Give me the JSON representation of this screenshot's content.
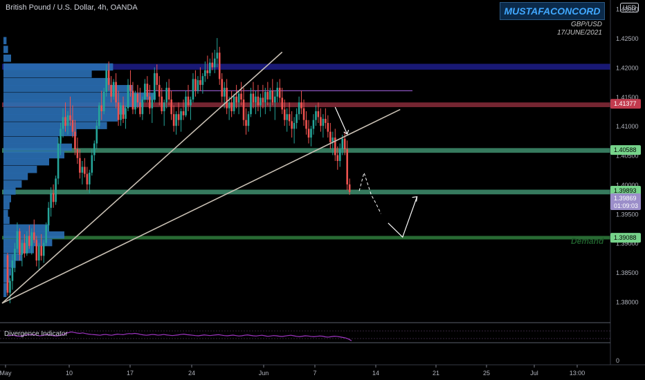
{
  "header": {
    "title": "British Pound / U.S. Dollar, 4h, OANDA",
    "brand": "MUSTAFACONCORD",
    "pair": "GBP/USD",
    "date": "17/JUNE/2021",
    "currency_button": "USD"
  },
  "annotations": {
    "demand": "Demand"
  },
  "indicator": {
    "name": "Divergence Indicator",
    "scale_zero": "0"
  },
  "colors": {
    "background": "#000000",
    "candle_up": "#26a69a",
    "candle_down": "#ef5350",
    "volume_profile": "#2a6fb5",
    "divergence_line": "#a035c4"
  },
  "chart_data": {
    "type": "candlestick",
    "symbol": "GBPUSD",
    "timeframe": "4h",
    "ylim": [
      1.3765,
      1.4315
    ],
    "y_ticks": [
      "1.43000",
      "1.42500",
      "1.42000",
      "1.41500",
      "1.41000",
      "1.40500",
      "1.40000",
      "1.39500",
      "1.39000",
      "1.38500",
      "1.38000"
    ],
    "x_ticks": [
      "May",
      "10",
      "17",
      "24",
      "Jun",
      "7",
      "14",
      "21",
      "25",
      "Jul",
      "13:00"
    ],
    "price_levels": [
      {
        "label": "1.41377",
        "value": 1.41377,
        "color": "#c23b4e",
        "text_color": "#ffffff"
      },
      {
        "label": "1.40588",
        "value": 1.40588,
        "color": "#76d38a",
        "text_color": "#000000"
      },
      {
        "label": "1.39893",
        "value": 1.39893,
        "color": "#76d38a",
        "text_color": "#000000"
      },
      {
        "label": "1.39869",
        "value": 1.39869,
        "color": "#9b8ec9",
        "text_color": "#ffffff",
        "countdown": "01:09:03"
      },
      {
        "label": "1.39088",
        "value": 1.39088,
        "color": "#76d38a",
        "text_color": "#000000"
      }
    ],
    "zones": [
      {
        "name": "supply-zone",
        "from": 1.4196,
        "to": 1.4206,
        "color": "#1d1d8a"
      },
      {
        "name": "resistance-zone",
        "from": 1.4132,
        "to": 1.414,
        "color": "#8a2b3a"
      },
      {
        "name": "support-zone-1",
        "from": 1.4054,
        "to": 1.4062,
        "color": "#3f8f6e"
      },
      {
        "name": "support-zone-2",
        "from": 1.3983,
        "to": 1.3991,
        "color": "#3f8f6e"
      },
      {
        "name": "demand-zone",
        "from": 1.3906,
        "to": 1.3912,
        "color": "#2f7d3c"
      }
    ],
    "horizontal_lines": [
      {
        "value": 1.416,
        "color": "#9b5fd6"
      }
    ],
    "trendlines": [
      {
        "from_bar": 0,
        "from_price": 1.3797,
        "to_bar": 114,
        "to_price": 1.4226
      },
      {
        "from_bar": 0,
        "from_price": 1.3797,
        "to_bar": 163,
        "to_price": 1.4128
      }
    ],
    "projection": {
      "dashed": [
        [
          146,
          1.3989
        ],
        [
          148,
          1.402
        ],
        [
          151,
          1.3982
        ],
        [
          153,
          1.3967
        ],
        [
          155,
          1.395
        ]
      ],
      "solid": [
        [
          158,
          1.3934
        ],
        [
          164,
          1.391
        ],
        [
          170,
          1.3979
        ]
      ]
    },
    "swing_arrow": [
      [
        136,
        1.4132
      ],
      [
        141,
        1.4086
      ]
    ],
    "candles_ohlc": [
      [
        1.3879,
        1.3883,
        1.381,
        1.3815
      ],
      [
        1.3815,
        1.384,
        1.3797,
        1.3835
      ],
      [
        1.3835,
        1.388,
        1.382,
        1.387
      ],
      [
        1.387,
        1.39,
        1.385,
        1.389
      ],
      [
        1.389,
        1.3935,
        1.388,
        1.392
      ],
      [
        1.392,
        1.3925,
        1.387,
        1.388
      ],
      [
        1.388,
        1.3905,
        1.386,
        1.39
      ],
      [
        1.39,
        1.3915,
        1.3875,
        1.3882
      ],
      [
        1.3882,
        1.392,
        1.3878,
        1.3912
      ],
      [
        1.3912,
        1.393,
        1.389,
        1.3895
      ],
      [
        1.3895,
        1.3925,
        1.388,
        1.3918
      ],
      [
        1.3918,
        1.394,
        1.39,
        1.3905
      ],
      [
        1.3905,
        1.3912,
        1.386,
        1.387
      ],
      [
        1.387,
        1.39,
        1.3855,
        1.3895
      ],
      [
        1.3895,
        1.3915,
        1.387,
        1.3878
      ],
      [
        1.3878,
        1.3905,
        1.3866,
        1.39
      ],
      [
        1.39,
        1.3935,
        1.3895,
        1.393
      ],
      [
        1.393,
        1.397,
        1.392,
        1.396
      ],
      [
        1.396,
        1.3995,
        1.3945,
        1.3985
      ],
      [
        1.3985,
        1.4,
        1.396,
        1.397
      ],
      [
        1.397,
        1.4015,
        1.3965,
        1.401
      ],
      [
        1.401,
        1.408,
        1.4,
        1.407
      ],
      [
        1.407,
        1.4105,
        1.405,
        1.4095
      ],
      [
        1.4095,
        1.413,
        1.408,
        1.4115
      ],
      [
        1.4115,
        1.414,
        1.409,
        1.41
      ],
      [
        1.41,
        1.4125,
        1.4085,
        1.4118
      ],
      [
        1.4118,
        1.415,
        1.41,
        1.411
      ],
      [
        1.411,
        1.4135,
        1.408,
        1.409
      ],
      [
        1.409,
        1.411,
        1.405,
        1.406
      ],
      [
        1.406,
        1.408,
        1.4035,
        1.4045
      ],
      [
        1.4045,
        1.406,
        1.401,
        1.402
      ],
      [
        1.402,
        1.404,
        1.4,
        1.403
      ],
      [
        1.403,
        1.4045,
        1.4012,
        1.4018
      ],
      [
        1.4018,
        1.403,
        1.399,
        1.4
      ],
      [
        1.4,
        1.4025,
        1.3985,
        1.402
      ],
      [
        1.402,
        1.406,
        1.4015,
        1.405
      ],
      [
        1.405,
        1.4075,
        1.404,
        1.407
      ],
      [
        1.407,
        1.411,
        1.406,
        1.41
      ],
      [
        1.41,
        1.414,
        1.4095,
        1.4135
      ],
      [
        1.4135,
        1.416,
        1.411,
        1.4125
      ],
      [
        1.4125,
        1.4165,
        1.412,
        1.4158
      ],
      [
        1.4158,
        1.4205,
        1.415,
        1.4195
      ],
      [
        1.4195,
        1.421,
        1.416,
        1.417
      ],
      [
        1.417,
        1.4185,
        1.414,
        1.415
      ],
      [
        1.415,
        1.418,
        1.4145,
        1.4175
      ],
      [
        1.4175,
        1.419,
        1.413,
        1.414
      ],
      [
        1.414,
        1.416,
        1.41,
        1.411
      ],
      [
        1.411,
        1.414,
        1.41,
        1.4135
      ],
      [
        1.4135,
        1.415,
        1.4105,
        1.4112
      ],
      [
        1.4112,
        1.4135,
        1.4095,
        1.413
      ],
      [
        1.413,
        1.418,
        1.4125,
        1.417
      ],
      [
        1.417,
        1.4195,
        1.415,
        1.416
      ],
      [
        1.416,
        1.4175,
        1.412,
        1.4128
      ],
      [
        1.4128,
        1.416,
        1.412,
        1.4155
      ],
      [
        1.4155,
        1.417,
        1.413,
        1.414
      ],
      [
        1.414,
        1.4165,
        1.4115,
        1.412
      ],
      [
        1.412,
        1.415,
        1.411,
        1.4145
      ],
      [
        1.4145,
        1.418,
        1.414,
        1.4172
      ],
      [
        1.4172,
        1.4185,
        1.414,
        1.415
      ],
      [
        1.415,
        1.417,
        1.412,
        1.413
      ],
      [
        1.413,
        1.4155,
        1.4105,
        1.4145
      ],
      [
        1.4145,
        1.42,
        1.414,
        1.419
      ],
      [
        1.419,
        1.4205,
        1.416,
        1.417
      ],
      [
        1.417,
        1.4185,
        1.4135,
        1.415
      ],
      [
        1.415,
        1.4165,
        1.412,
        1.4125
      ],
      [
        1.4125,
        1.4145,
        1.41,
        1.414
      ],
      [
        1.414,
        1.4175,
        1.413,
        1.4165
      ],
      [
        1.4165,
        1.418,
        1.4135,
        1.4145
      ],
      [
        1.4145,
        1.416,
        1.411,
        1.412
      ],
      [
        1.412,
        1.4135,
        1.409,
        1.41
      ],
      [
        1.41,
        1.4125,
        1.4085,
        1.412
      ],
      [
        1.412,
        1.414,
        1.41,
        1.411
      ],
      [
        1.411,
        1.413,
        1.409,
        1.4125
      ],
      [
        1.4125,
        1.4145,
        1.411,
        1.4118
      ],
      [
        1.4118,
        1.416,
        1.4115,
        1.415
      ],
      [
        1.415,
        1.417,
        1.4125,
        1.4135
      ],
      [
        1.4135,
        1.415,
        1.411,
        1.4145
      ],
      [
        1.4145,
        1.419,
        1.414,
        1.418
      ],
      [
        1.418,
        1.4195,
        1.415,
        1.416
      ],
      [
        1.416,
        1.4185,
        1.4155,
        1.4178
      ],
      [
        1.4178,
        1.42,
        1.416,
        1.417
      ],
      [
        1.417,
        1.419,
        1.4155,
        1.4185
      ],
      [
        1.4185,
        1.421,
        1.4175,
        1.4195
      ],
      [
        1.4195,
        1.422,
        1.418,
        1.419
      ],
      [
        1.419,
        1.4215,
        1.4185,
        1.4208
      ],
      [
        1.4208,
        1.4225,
        1.4195,
        1.42
      ],
      [
        1.42,
        1.423,
        1.419,
        1.4215
      ],
      [
        1.4215,
        1.425,
        1.42,
        1.4225
      ],
      [
        1.4225,
        1.4235,
        1.417,
        1.418
      ],
      [
        1.418,
        1.419,
        1.414,
        1.415
      ],
      [
        1.415,
        1.4175,
        1.413,
        1.4165
      ],
      [
        1.4165,
        1.418,
        1.412,
        1.413
      ],
      [
        1.413,
        1.415,
        1.411,
        1.414
      ],
      [
        1.414,
        1.416,
        1.4115,
        1.4125
      ],
      [
        1.4125,
        1.4155,
        1.412,
        1.415
      ],
      [
        1.415,
        1.417,
        1.413,
        1.414
      ],
      [
        1.414,
        1.416,
        1.412,
        1.4155
      ],
      [
        1.4155,
        1.4175,
        1.4135,
        1.4145
      ],
      [
        1.4145,
        1.4165,
        1.41,
        1.411
      ],
      [
        1.411,
        1.413,
        1.4085,
        1.41
      ],
      [
        1.41,
        1.4125,
        1.409,
        1.412
      ],
      [
        1.412,
        1.4165,
        1.4115,
        1.4155
      ],
      [
        1.4155,
        1.4175,
        1.413,
        1.414
      ],
      [
        1.414,
        1.416,
        1.412,
        1.415
      ],
      [
        1.415,
        1.417,
        1.4125,
        1.4135
      ],
      [
        1.4135,
        1.4155,
        1.4115,
        1.4148
      ],
      [
        1.4148,
        1.417,
        1.413,
        1.414
      ],
      [
        1.414,
        1.4165,
        1.412,
        1.4158
      ],
      [
        1.4158,
        1.4175,
        1.4135,
        1.4145
      ],
      [
        1.4145,
        1.4165,
        1.4125,
        1.416
      ],
      [
        1.416,
        1.418,
        1.4135,
        1.414
      ],
      [
        1.414,
        1.416,
        1.411,
        1.415
      ],
      [
        1.415,
        1.4175,
        1.414,
        1.4165
      ],
      [
        1.4165,
        1.418,
        1.414,
        1.4148
      ],
      [
        1.4148,
        1.4165,
        1.412,
        1.4128
      ],
      [
        1.4128,
        1.4145,
        1.41,
        1.411
      ],
      [
        1.411,
        1.413,
        1.409,
        1.412
      ],
      [
        1.412,
        1.414,
        1.41,
        1.4108
      ],
      [
        1.4108,
        1.4125,
        1.408,
        1.4095
      ],
      [
        1.4095,
        1.4115,
        1.407,
        1.4105
      ],
      [
        1.4105,
        1.413,
        1.4095,
        1.412
      ],
      [
        1.412,
        1.415,
        1.411,
        1.414
      ],
      [
        1.414,
        1.416,
        1.412,
        1.413
      ],
      [
        1.413,
        1.4145,
        1.41,
        1.411
      ],
      [
        1.411,
        1.4125,
        1.4085,
        1.4095
      ],
      [
        1.4095,
        1.411,
        1.407,
        1.408
      ],
      [
        1.408,
        1.41,
        1.4065,
        1.4095
      ],
      [
        1.4095,
        1.412,
        1.4085,
        1.411
      ],
      [
        1.411,
        1.4135,
        1.41,
        1.4125
      ],
      [
        1.4125,
        1.414,
        1.4105,
        1.4115
      ],
      [
        1.4115,
        1.413,
        1.409,
        1.41
      ],
      [
        1.41,
        1.412,
        1.408,
        1.4112
      ],
      [
        1.4112,
        1.413,
        1.4095,
        1.4105
      ],
      [
        1.4105,
        1.4118,
        1.408,
        1.409
      ],
      [
        1.409,
        1.4105,
        1.406,
        1.4072
      ],
      [
        1.4072,
        1.409,
        1.405,
        1.408
      ],
      [
        1.408,
        1.4095,
        1.404,
        1.405
      ],
      [
        1.405,
        1.4065,
        1.4025,
        1.404
      ],
      [
        1.404,
        1.407,
        1.403,
        1.406
      ],
      [
        1.406,
        1.4085,
        1.405,
        1.4078
      ],
      [
        1.4078,
        1.409,
        1.405,
        1.406
      ],
      [
        1.406,
        1.4075,
        1.399,
        1.4
      ],
      [
        1.4,
        1.401,
        1.3982,
        1.3987
      ]
    ],
    "volume_profile": [
      {
        "price": 1.4245,
        "size": 2
      },
      {
        "price": 1.423,
        "size": 3
      },
      {
        "price": 1.4215,
        "size": 5
      },
      {
        "price": 1.42,
        "size": 72
      },
      {
        "price": 1.4188,
        "size": 58
      },
      {
        "price": 1.4175,
        "size": 70
      },
      {
        "price": 1.4163,
        "size": 85
      },
      {
        "price": 1.415,
        "size": 100
      },
      {
        "price": 1.4138,
        "size": 92
      },
      {
        "price": 1.4125,
        "size": 80
      },
      {
        "price": 1.4113,
        "size": 75
      },
      {
        "price": 1.41,
        "size": 68
      },
      {
        "price": 1.4088,
        "size": 48
      },
      {
        "price": 1.4075,
        "size": 36
      },
      {
        "price": 1.4063,
        "size": 45
      },
      {
        "price": 1.405,
        "size": 40
      },
      {
        "price": 1.4038,
        "size": 30
      },
      {
        "price": 1.4025,
        "size": 22
      },
      {
        "price": 1.4013,
        "size": 16
      },
      {
        "price": 1.4,
        "size": 12
      },
      {
        "price": 1.3988,
        "size": 8
      },
      {
        "price": 1.3975,
        "size": 5
      },
      {
        "price": 1.3963,
        "size": 4
      },
      {
        "price": 1.395,
        "size": 3
      },
      {
        "price": 1.3938,
        "size": 4
      },
      {
        "price": 1.3925,
        "size": 30
      },
      {
        "price": 1.3913,
        "size": 40
      },
      {
        "price": 1.39,
        "size": 32
      },
      {
        "price": 1.3888,
        "size": 20
      },
      {
        "price": 1.3875,
        "size": 12
      },
      {
        "price": 1.3863,
        "size": 8
      },
      {
        "price": 1.385,
        "size": 5
      },
      {
        "price": 1.3838,
        "size": 4
      },
      {
        "price": 1.3825,
        "size": 3
      },
      {
        "price": 1.3813,
        "size": 2
      }
    ],
    "divergence": [
      0.5,
      0.52,
      0.55,
      0.48,
      0.45,
      0.5,
      0.55,
      0.6,
      0.58,
      0.62,
      0.55,
      0.5,
      0.52,
      0.58,
      0.62,
      0.55,
      0.5,
      0.48,
      0.52,
      0.6,
      0.7,
      0.78,
      0.85,
      0.8,
      0.75,
      0.72,
      0.76,
      0.7,
      0.65,
      0.62,
      0.6,
      0.58,
      0.55,
      0.6,
      0.62,
      0.58,
      0.55,
      0.6,
      0.65,
      0.62,
      0.6,
      0.66,
      0.7,
      0.68,
      0.72,
      0.68,
      0.62,
      0.58,
      0.55,
      0.58,
      0.62,
      0.6,
      0.56,
      0.58,
      0.62,
      0.58,
      0.55,
      0.52,
      0.55,
      0.58,
      0.62,
      0.65,
      0.6,
      0.58,
      0.55,
      0.52,
      0.5,
      0.54,
      0.58,
      0.55,
      0.52,
      0.55,
      0.58,
      0.6,
      0.56,
      0.52,
      0.5,
      0.53,
      0.56,
      0.52,
      0.48,
      0.5,
      0.55,
      0.58,
      0.54,
      0.5,
      0.48,
      0.52,
      0.55,
      0.5,
      0.45,
      0.48,
      0.52,
      0.5,
      0.46,
      0.44,
      0.48,
      0.52,
      0.55,
      0.5,
      0.45,
      0.42,
      0.46,
      0.5,
      0.48,
      0.44,
      0.42,
      0.45,
      0.48,
      0.46,
      0.4,
      0.38,
      0.42,
      0.46,
      0.44,
      0.4,
      0.35,
      0.3,
      0.2,
      0.05
    ]
  }
}
